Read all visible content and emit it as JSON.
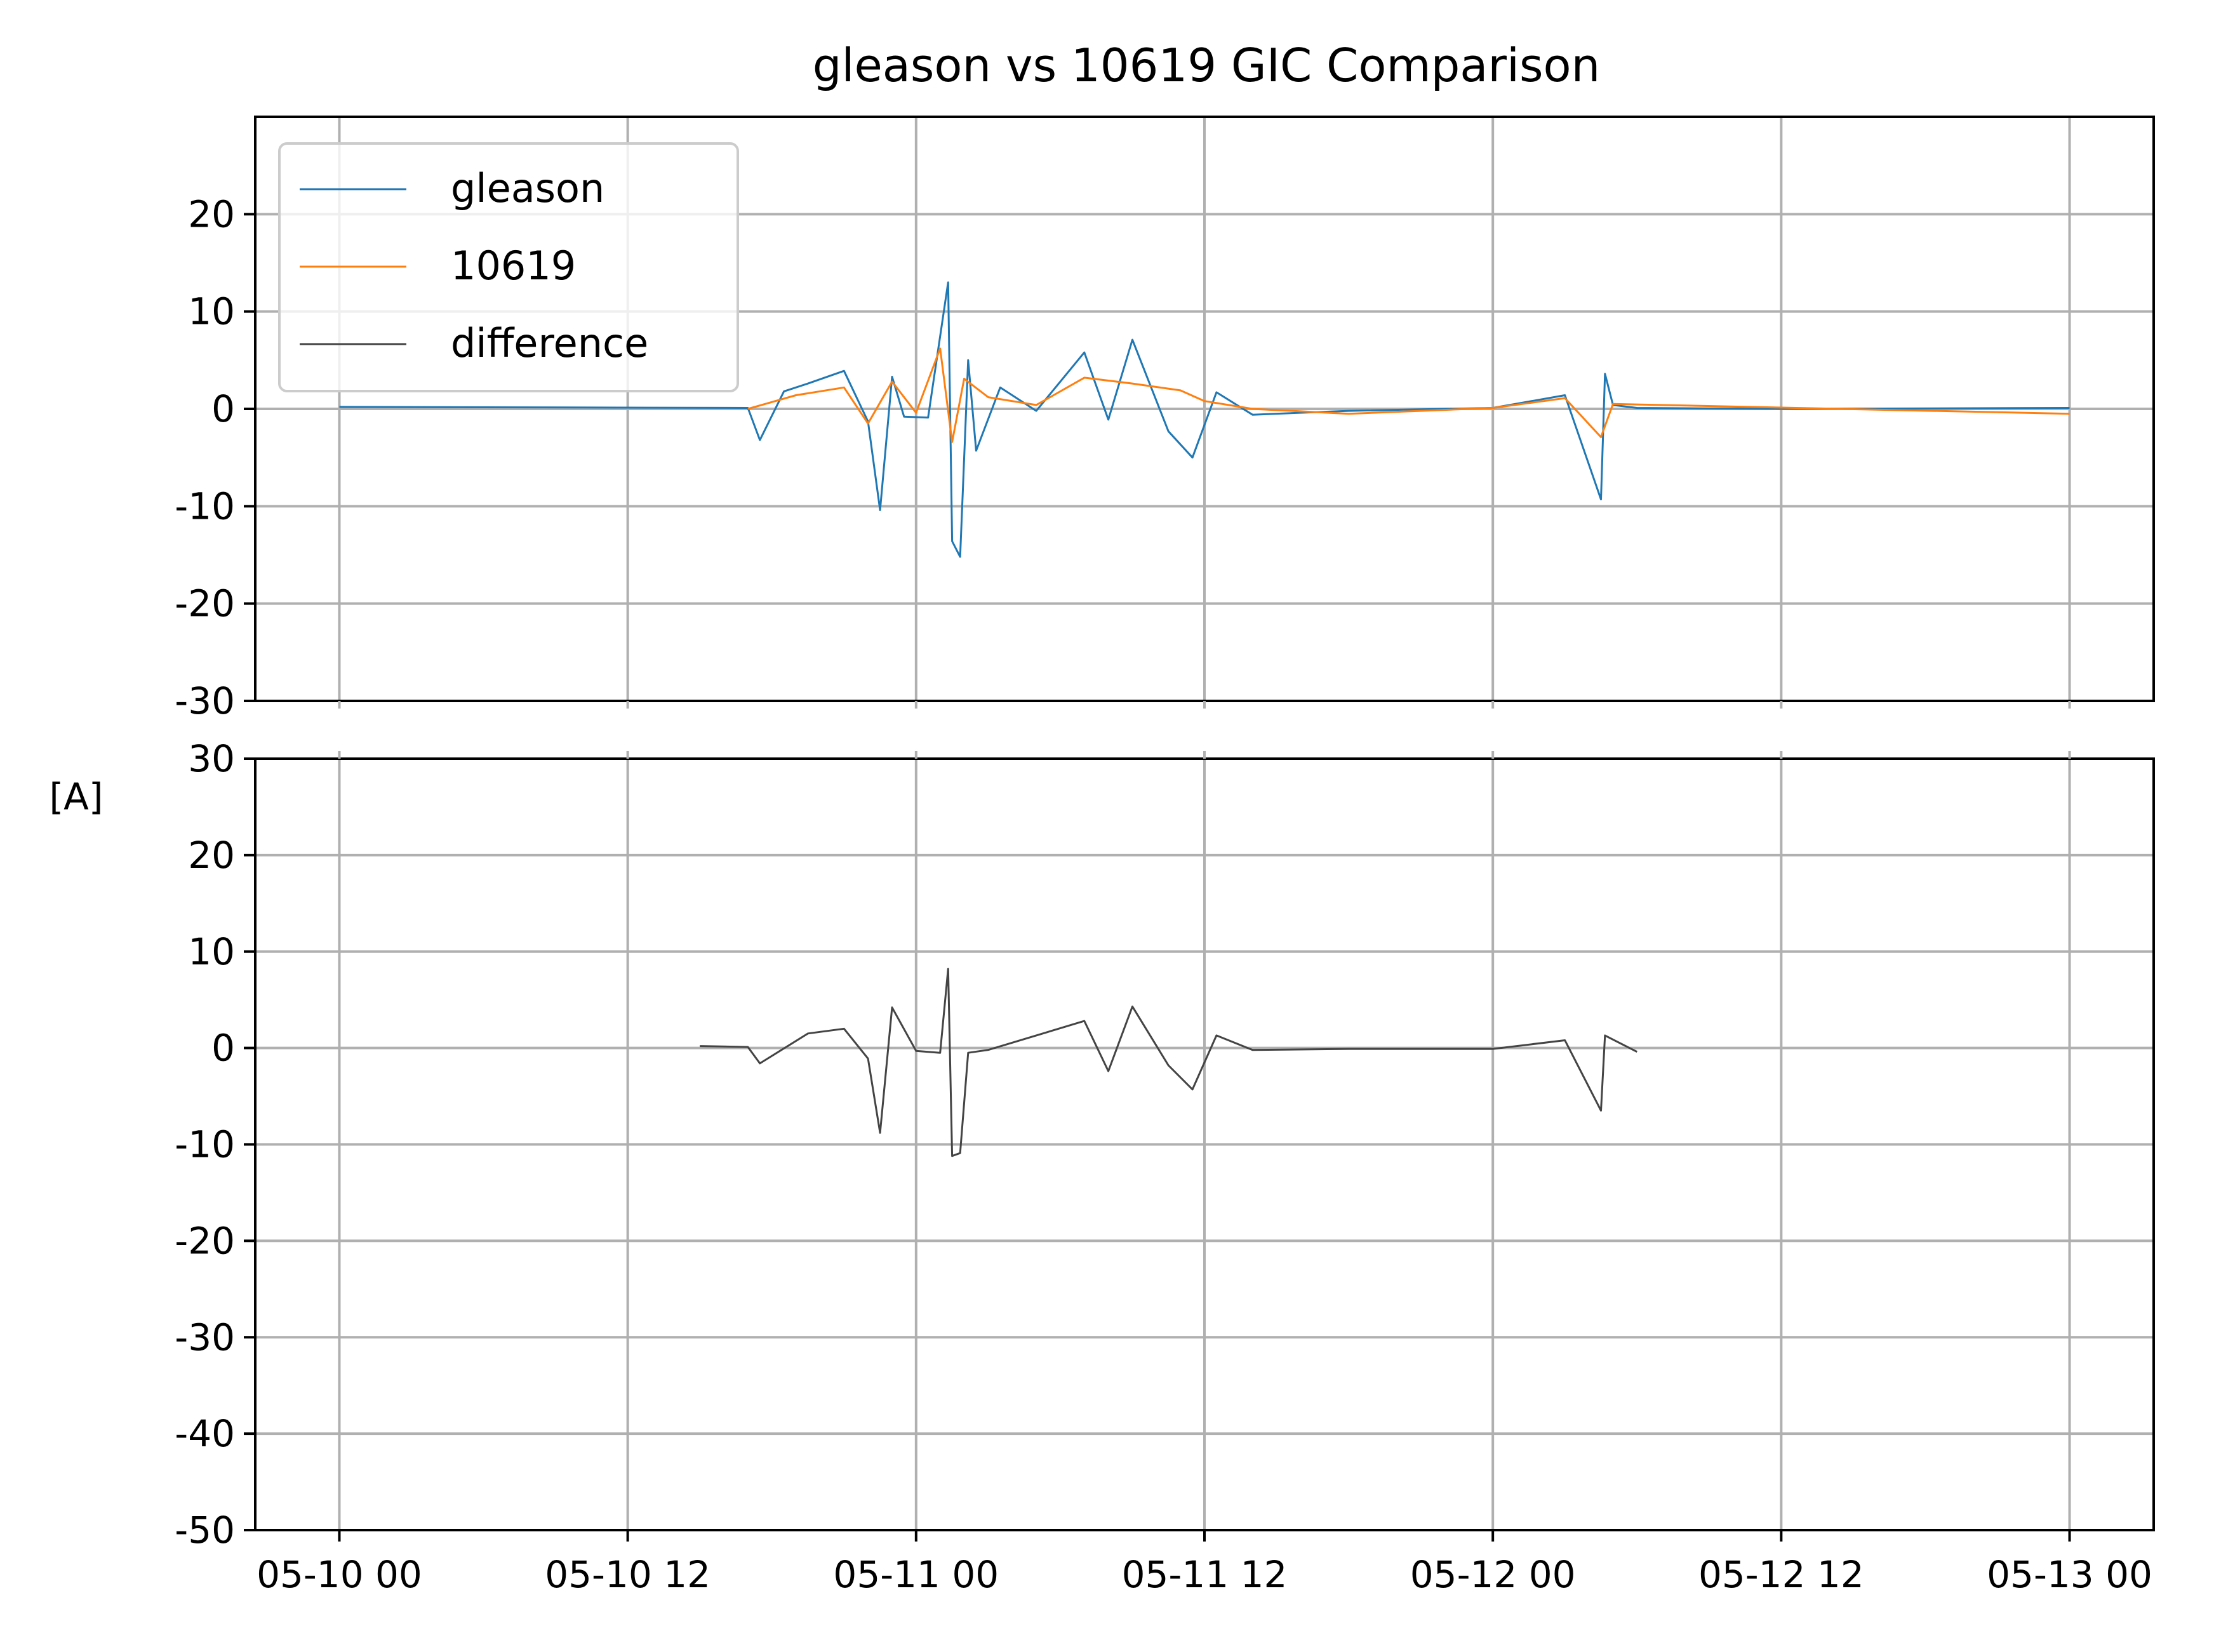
{
  "chart_data": {
    "type": "line",
    "title": "gleason vs 10619 GIC Comparison",
    "ylabel": "[A]",
    "xlabel": "",
    "x_tick_labels": [
      "05-10 00",
      "05-10 12",
      "05-11 00",
      "05-11 12",
      "05-12 00",
      "05-12 12",
      "05-13 00"
    ],
    "xlim": [
      "05-09 20:30",
      "05-13 03:30"
    ],
    "grid": true,
    "legend": {
      "placement": "top-left",
      "entries": [
        "gleason",
        "10619",
        "difference"
      ]
    },
    "colors": {
      "gleason": "#1f77b4",
      "10619": "#ff7f0e",
      "difference": "#444444",
      "grid": "#b0b0b0"
    },
    "panels": [
      {
        "name": "top",
        "ylim": [
          -30,
          30
        ],
        "y_ticks": [
          "20",
          "10",
          "0",
          "-10",
          "-20",
          "-30"
        ],
        "series": [
          {
            "name": "gleason",
            "x": [
              "05-10 00:00",
              "05-10 17:00",
              "05-10 17:30",
              "05-10 18:30",
              "05-10 19:30",
              "05-10 21:00",
              "05-10 22:00",
              "05-10 22:30",
              "05-10 23:00",
              "05-10 23:30",
              "05-11 00:30",
              "05-11 01:20",
              "05-11 01:30",
              "05-11 01:50",
              "05-11 02:10",
              "05-11 02:30",
              "05-11 03:30",
              "05-11 05:00",
              "05-11 07:00",
              "05-11 08:00",
              "05-11 09:00",
              "05-11 10:30",
              "05-11 11:30",
              "05-11 12:30",
              "05-11 14:00",
              "05-11 18:00",
              "05-12 00:00",
              "05-12 03:00",
              "05-12 04:30",
              "05-12 04:40",
              "05-12 05:00",
              "05-12 06:00",
              "05-12 12:00",
              "05-13 00:00"
            ],
            "y": [
              0.2,
              0.1,
              -3.2,
              1.8,
              2.6,
              3.9,
              -1.3,
              -10.4,
              3.3,
              -0.8,
              -0.9,
              13.0,
              -13.6,
              -15.2,
              5.0,
              -4.3,
              2.2,
              -0.2,
              5.8,
              -1.1,
              7.1,
              -2.3,
              -5.0,
              1.7,
              -0.6,
              -0.2,
              0.1,
              1.4,
              -9.3,
              3.6,
              0.4,
              0.1,
              0.0,
              0.1
            ]
          },
          {
            "name": "10619",
            "x": [
              "05-10 17:00",
              "05-10 19:00",
              "05-10 21:00",
              "05-10 22:00",
              "05-10 23:00",
              "05-11 00:00",
              "05-11 01:00",
              "05-11 01:30",
              "05-11 02:00",
              "05-11 03:00",
              "05-11 05:00",
              "05-11 07:00",
              "05-11 09:00",
              "05-11 11:00",
              "05-11 12:00",
              "05-11 14:00",
              "05-11 18:00",
              "05-12 00:00",
              "05-12 03:00",
              "05-12 04:30",
              "05-12 05:00",
              "05-13 00:00"
            ],
            "y": [
              0.0,
              1.4,
              2.2,
              -1.5,
              2.8,
              -0.4,
              6.2,
              -3.4,
              3.1,
              1.2,
              0.4,
              3.2,
              2.6,
              1.9,
              0.8,
              0.0,
              -0.5,
              0.1,
              1.1,
              -2.9,
              0.5,
              -0.5
            ]
          }
        ]
      },
      {
        "name": "bottom",
        "ylim": [
          -50,
          30
        ],
        "y_ticks": [
          "30",
          "20",
          "10",
          "0",
          "-10",
          "-20",
          "-30",
          "-40",
          "-50"
        ],
        "series": [
          {
            "name": "difference",
            "x": [
              "05-10 15:00",
              "05-10 17:00",
              "05-10 17:30",
              "05-10 19:30",
              "05-10 21:00",
              "05-10 22:00",
              "05-10 22:30",
              "05-10 23:00",
              "05-11 00:00",
              "05-11 01:00",
              "05-11 01:20",
              "05-11 01:30",
              "05-11 01:50",
              "05-11 02:10",
              "05-11 03:00",
              "05-11 07:00",
              "05-11 08:00",
              "05-11 09:00",
              "05-11 10:30",
              "05-11 11:30",
              "05-11 12:30",
              "05-11 14:00",
              "05-11 18:00",
              "05-12 00:00",
              "05-12 03:00",
              "05-12 04:30",
              "05-12 04:40",
              "05-12 06:00"
            ],
            "y": [
              0.2,
              0.1,
              -1.6,
              1.5,
              2.0,
              -1.1,
              -8.8,
              4.2,
              -0.3,
              -0.5,
              8.2,
              -11.2,
              -10.9,
              -0.5,
              -0.2,
              2.8,
              -2.4,
              4.3,
              -1.8,
              -4.3,
              1.3,
              -0.2,
              -0.1,
              -0.1,
              0.8,
              -6.5,
              1.3,
              -0.4
            ]
          }
        ]
      }
    ]
  }
}
